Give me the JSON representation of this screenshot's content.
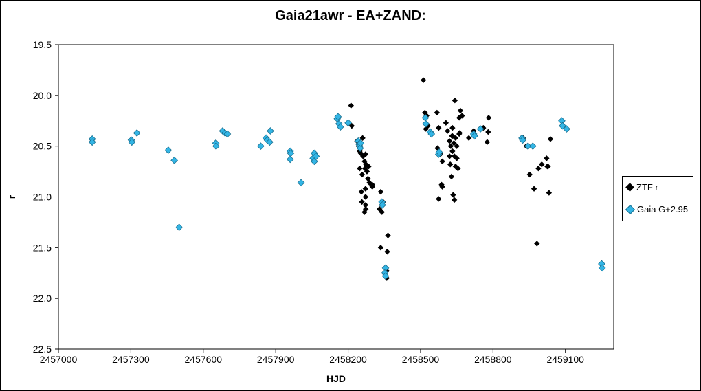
{
  "chart_data": {
    "type": "scatter",
    "title": "Gaia21awr - EA+ZAND:",
    "xlabel": "HJD",
    "ylabel": "r",
    "xlim": [
      2457000,
      2459300
    ],
    "ylim": [
      22.5,
      19.5
    ],
    "y_inverted": true,
    "xticks": [
      "2457000",
      "2457300",
      "2457600",
      "2457900",
      "2458200",
      "2458500",
      "2458800",
      "2459100"
    ],
    "yticks": [
      "19.5",
      "20.0",
      "20.5",
      "21.0",
      "21.5",
      "22.0",
      "22.5"
    ],
    "grid": false,
    "legend_position": "right",
    "series": [
      {
        "name": "ZTF r",
        "color": "#000000",
        "points": [
          [
            2458212,
            20.1
          ],
          [
            2458200,
            20.27
          ],
          [
            2458215,
            20.3
          ],
          [
            2458237,
            20.45
          ],
          [
            2458243,
            20.5
          ],
          [
            2458248,
            20.55
          ],
          [
            2458252,
            20.57
          ],
          [
            2458260,
            20.42
          ],
          [
            2458262,
            20.6
          ],
          [
            2458268,
            20.65
          ],
          [
            2458270,
            20.72
          ],
          [
            2458272,
            20.58
          ],
          [
            2458274,
            20.68
          ],
          [
            2458278,
            20.75
          ],
          [
            2458248,
            20.72
          ],
          [
            2458258,
            20.78
          ],
          [
            2458282,
            20.82
          ],
          [
            2458285,
            20.7
          ],
          [
            2458288,
            20.86
          ],
          [
            2458300,
            20.88
          ],
          [
            2458272,
            20.92
          ],
          [
            2458255,
            20.95
          ],
          [
            2458272,
            21.0
          ],
          [
            2458257,
            21.05
          ],
          [
            2458272,
            21.08
          ],
          [
            2458273,
            21.12
          ],
          [
            2458268,
            21.15
          ],
          [
            2458330,
            21.12
          ],
          [
            2458335,
            20.95
          ],
          [
            2458340,
            21.15
          ],
          [
            2458345,
            21.05
          ],
          [
            2458335,
            21.5
          ],
          [
            2458365,
            21.38
          ],
          [
            2458362,
            21.54
          ],
          [
            2458360,
            21.8
          ],
          [
            2458360,
            21.73
          ],
          [
            2458300,
            20.9
          ],
          [
            2458512,
            19.85
          ],
          [
            2458518,
            20.17
          ],
          [
            2458522,
            20.33
          ],
          [
            2458525,
            20.2
          ],
          [
            2458530,
            20.3
          ],
          [
            2458568,
            20.17
          ],
          [
            2458575,
            20.32
          ],
          [
            2458582,
            20.58
          ],
          [
            2458570,
            20.52
          ],
          [
            2458590,
            20.65
          ],
          [
            2458587,
            20.88
          ],
          [
            2458590,
            20.9
          ],
          [
            2458575,
            21.02
          ],
          [
            2458605,
            20.27
          ],
          [
            2458612,
            20.35
          ],
          [
            2458620,
            20.45
          ],
          [
            2458625,
            20.5
          ],
          [
            2458630,
            20.4
          ],
          [
            2458632,
            20.55
          ],
          [
            2458638,
            20.47
          ],
          [
            2458642,
            20.05
          ],
          [
            2458640,
            20.6
          ],
          [
            2458645,
            20.7
          ],
          [
            2458650,
            20.62
          ],
          [
            2458655,
            20.72
          ],
          [
            2458660,
            20.22
          ],
          [
            2458662,
            20.37
          ],
          [
            2458665,
            20.15
          ],
          [
            2458672,
            20.2
          ],
          [
            2458632,
            20.32
          ],
          [
            2458620,
            20.6
          ],
          [
            2458623,
            20.68
          ],
          [
            2458628,
            20.8
          ],
          [
            2458635,
            20.98
          ],
          [
            2458640,
            21.03
          ],
          [
            2458645,
            20.42
          ],
          [
            2458650,
            20.5
          ],
          [
            2458660,
            20.38
          ],
          [
            2458700,
            20.42
          ],
          [
            2458720,
            20.35
          ],
          [
            2458760,
            20.32
          ],
          [
            2458780,
            20.36
          ],
          [
            2458782,
            20.22
          ],
          [
            2458776,
            20.46
          ],
          [
            2458632,
            20.4
          ],
          [
            2458925,
            20.42
          ],
          [
            2458938,
            20.5
          ],
          [
            2458952,
            20.78
          ],
          [
            2458970,
            20.92
          ],
          [
            2458988,
            20.72
          ],
          [
            2459002,
            20.68
          ],
          [
            2459022,
            20.62
          ],
          [
            2459028,
            20.7
          ],
          [
            2459032,
            20.96
          ],
          [
            2459038,
            20.43
          ],
          [
            2458982,
            21.46
          ],
          [
            2459025,
            20.7
          ]
        ]
      },
      {
        "name": "Gaia G+2.95",
        "color": "#33b5e5",
        "points": [
          [
            2457140,
            20.43
          ],
          [
            2457140,
            20.46
          ],
          [
            2457302,
            20.44
          ],
          [
            2457304,
            20.46
          ],
          [
            2457325,
            20.37
          ],
          [
            2457455,
            20.54
          ],
          [
            2457480,
            20.64
          ],
          [
            2457500,
            21.3
          ],
          [
            2457652,
            20.47
          ],
          [
            2457653,
            20.5
          ],
          [
            2457680,
            20.35
          ],
          [
            2457690,
            20.37
          ],
          [
            2457700,
            20.38
          ],
          [
            2457838,
            20.5
          ],
          [
            2457860,
            20.42
          ],
          [
            2457865,
            20.44
          ],
          [
            2457875,
            20.46
          ],
          [
            2457878,
            20.35
          ],
          [
            2457960,
            20.55
          ],
          [
            2457962,
            20.57
          ],
          [
            2457960,
            20.63
          ],
          [
            2458005,
            20.86
          ],
          [
            2458055,
            20.62
          ],
          [
            2458060,
            20.65
          ],
          [
            2458060,
            20.57
          ],
          [
            2458067,
            20.6
          ],
          [
            2458155,
            20.23
          ],
          [
            2458158,
            20.21
          ],
          [
            2458162,
            20.28
          ],
          [
            2458168,
            20.31
          ],
          [
            2458200,
            20.27
          ],
          [
            2458242,
            20.45
          ],
          [
            2458245,
            20.48
          ],
          [
            2458248,
            20.5
          ],
          [
            2458250,
            20.52
          ],
          [
            2458252,
            20.47
          ],
          [
            2458340,
            21.05
          ],
          [
            2458342,
            21.08
          ],
          [
            2458355,
            21.7
          ],
          [
            2458352,
            21.75
          ],
          [
            2458355,
            21.78
          ],
          [
            2458520,
            20.22
          ],
          [
            2458522,
            20.28
          ],
          [
            2458540,
            20.36
          ],
          [
            2458545,
            20.38
          ],
          [
            2458575,
            20.58
          ],
          [
            2458577,
            20.56
          ],
          [
            2458720,
            20.38
          ],
          [
            2458723,
            20.4
          ],
          [
            2458748,
            20.33
          ],
          [
            2458920,
            20.42
          ],
          [
            2458923,
            20.44
          ],
          [
            2458945,
            20.5
          ],
          [
            2458965,
            20.5
          ],
          [
            2459085,
            20.25
          ],
          [
            2459088,
            20.3
          ],
          [
            2459105,
            20.33
          ],
          [
            2459250,
            21.66
          ],
          [
            2459252,
            21.7
          ]
        ]
      }
    ]
  }
}
